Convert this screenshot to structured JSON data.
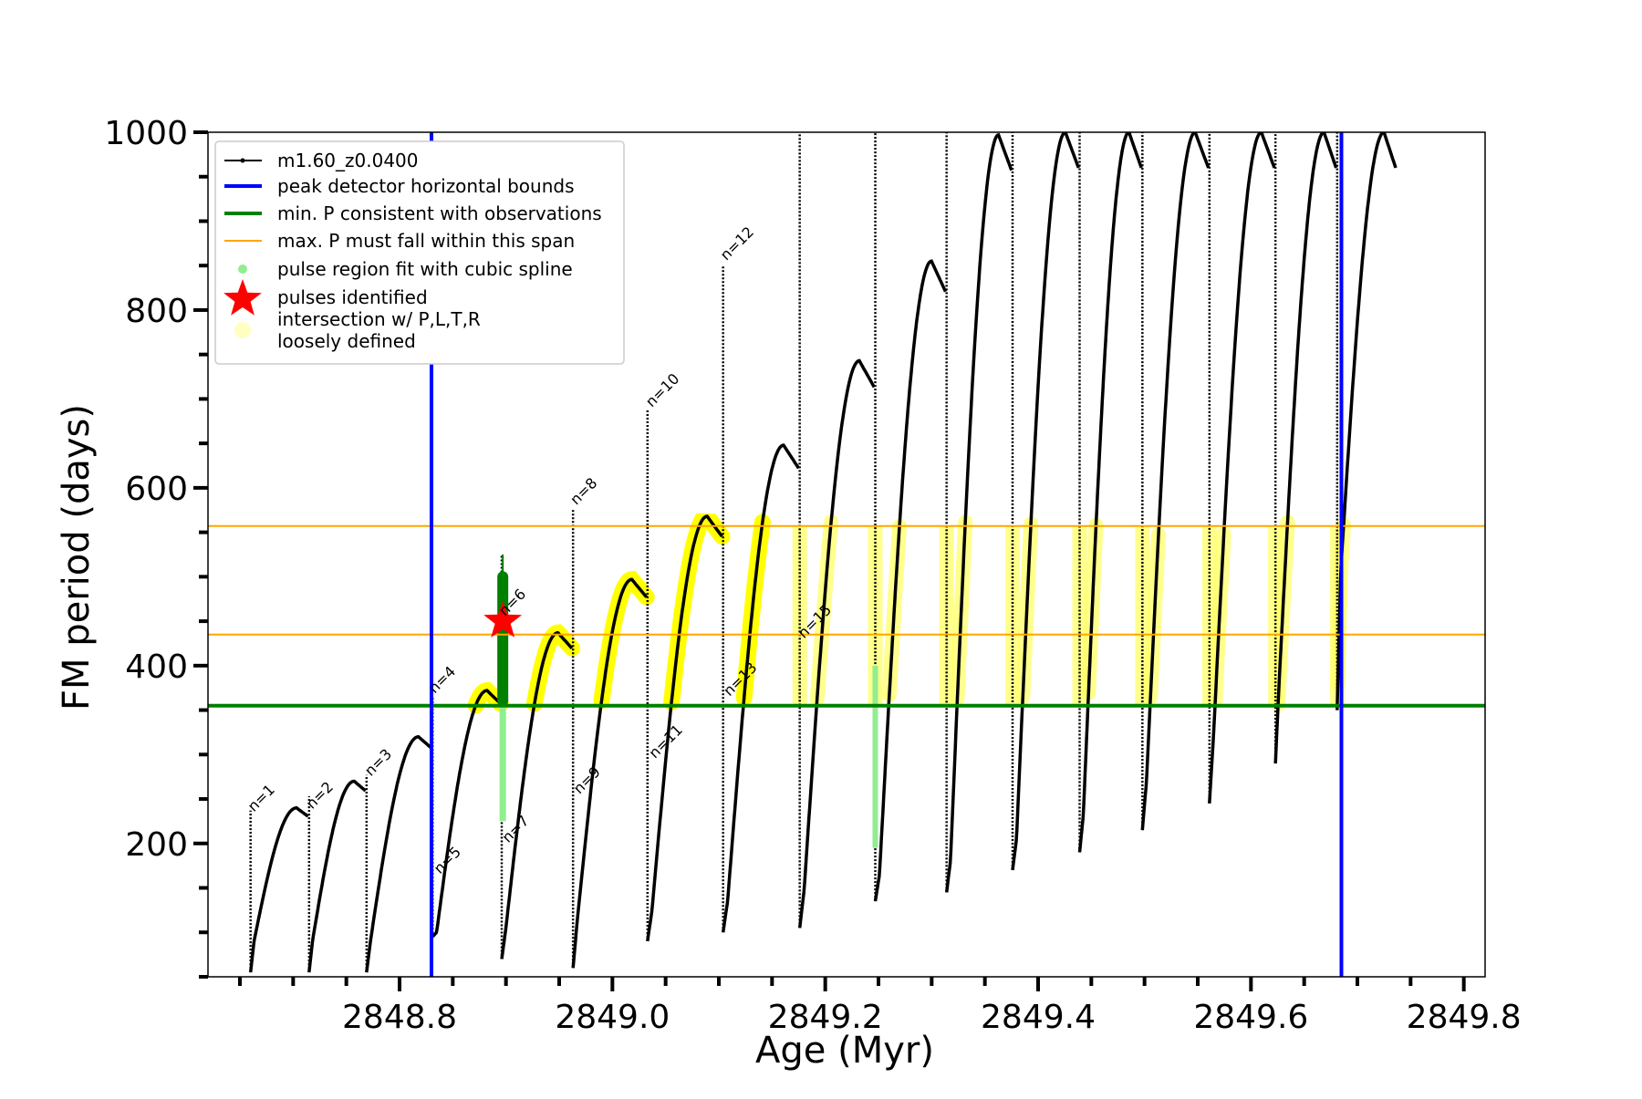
{
  "chart_data": {
    "type": "line",
    "title": "",
    "xlabel": "Age (Myr)",
    "ylabel": "FM period (days)",
    "xlim": [
      2848.62,
      2849.82
    ],
    "ylim": [
      50,
      1000
    ],
    "x_ticks_major": [
      2848.8,
      2849.0,
      2849.2,
      2849.4,
      2849.6,
      2849.8
    ],
    "x_tick_labels": [
      "2848.8",
      "2849.0",
      "2849.2",
      "2849.4",
      "2849.6",
      "2849.8"
    ],
    "y_ticks_major": [
      200,
      400,
      600,
      800,
      1000
    ],
    "y_tick_labels": [
      "200",
      "400",
      "600",
      "800",
      "1000"
    ],
    "grid": false,
    "legend_position": "top-left",
    "legend": [
      {
        "label": "m1.60_z0.0400",
        "kind": "line-dots",
        "color": "#000000"
      },
      {
        "label": "peak detector horizontal bounds",
        "kind": "line",
        "color": "#0000ff"
      },
      {
        "label": "min. P consistent with observations",
        "kind": "line",
        "color": "#008000"
      },
      {
        "label": "max. P must fall within this span",
        "kind": "thin-line",
        "color": "#ffa500"
      },
      {
        "label": "pulse region fit with cubic spline",
        "kind": "dot",
        "color": "#90ee90"
      },
      {
        "label": "pulses identified",
        "kind": "star",
        "color": "#ff0000"
      },
      {
        "label": "intersection w/ P,L,T,R\nloosely defined",
        "kind": "halo",
        "color": "#ffff99"
      }
    ],
    "vlines": [
      2848.83,
      2849.685
    ],
    "min_period": 355,
    "max_period_span": [
      435,
      557
    ],
    "star_point": {
      "x": 2848.897,
      "y": 450
    },
    "pulses": [
      {
        "n": 1,
        "x0": 2848.66,
        "x1": 2848.714,
        "ylow": 55,
        "ymin": 90,
        "ypeak": 240,
        "ytop": 237
      },
      {
        "n": 2,
        "x0": 2848.715,
        "x1": 2848.768,
        "ylow": 55,
        "ymin": 90,
        "ypeak": 270,
        "ytop": 253
      },
      {
        "n": 3,
        "x0": 2848.769,
        "x1": 2848.83,
        "ylow": 55,
        "ymin": 90,
        "ypeak": 320,
        "ytop": 277
      },
      {
        "n": 4,
        "x0": 2848.831,
        "x1": 2848.895,
        "ylow": 95,
        "ymin": 100,
        "ypeak": 372,
        "ytop": 365
      },
      {
        "n": 5,
        "x0": 2848.835,
        "x1": 2848.835,
        "ylow": 100,
        "ymin": 100,
        "ypeak": 200,
        "ytop": 200,
        "label_only": true
      },
      {
        "n": 6,
        "x0": 2848.896,
        "x1": 2848.962,
        "ylow": 70,
        "ymin": 105,
        "ypeak": 437,
        "ytop": 525
      },
      {
        "n": 8,
        "x0": 2848.963,
        "x1": 2849.032,
        "ylow": 60,
        "ymin": 115,
        "ypeak": 497,
        "ytop": 577
      },
      {
        "n": 10,
        "x0": 2849.033,
        "x1": 2849.103,
        "ylow": 90,
        "ymin": 125,
        "ypeak": 568,
        "ytop": 688
      },
      {
        "n": 12,
        "x0": 2849.104,
        "x1": 2849.175,
        "ylow": 100,
        "ymin": 135,
        "ypeak": 648,
        "ytop": 850
      },
      {
        "n": 14,
        "x0": 2849.176,
        "x1": 2849.246,
        "ylow": 105,
        "ymin": 148,
        "ypeak": 743,
        "ytop": 1000
      },
      {
        "n": 16,
        "x0": 2849.247,
        "x1": 2849.313,
        "ylow": 135,
        "ymin": 165,
        "ypeak": 855,
        "ytop": 1000
      },
      {
        "n": 17,
        "x0": 2849.314,
        "x1": 2849.375,
        "ylow": 145,
        "ymin": 180,
        "ypeak": 997,
        "ytop": 1000
      },
      {
        "n": 18,
        "x0": 2849.376,
        "x1": 2849.438,
        "ylow": 170,
        "ymin": 205,
        "ypeak": 1000,
        "ytop": 1000
      },
      {
        "n": 19,
        "x0": 2849.439,
        "x1": 2849.497,
        "ylow": 190,
        "ymin": 232,
        "ypeak": 1000,
        "ytop": 1000
      },
      {
        "n": 20,
        "x0": 2849.498,
        "x1": 2849.56,
        "ylow": 215,
        "ymin": 268,
        "ypeak": 1000,
        "ytop": 1000
      },
      {
        "n": 21,
        "x0": 2849.561,
        "x1": 2849.622,
        "ylow": 245,
        "ymin": 318,
        "ypeak": 1000,
        "ytop": 1000
      },
      {
        "n": 22,
        "x0": 2849.623,
        "x1": 2849.68,
        "ylow": 290,
        "ymin": 380,
        "ypeak": 1000,
        "ytop": 1000
      },
      {
        "n": 23,
        "x0": 2849.681,
        "x1": 2849.736,
        "ylow": 350,
        "ymin": 505,
        "ypeak": 1000,
        "ytop": 1000
      }
    ],
    "pulse_labels": [
      {
        "text": "n=1",
        "x": 2848.663,
        "y": 235
      },
      {
        "text": "n=2",
        "x": 2848.718,
        "y": 238
      },
      {
        "text": "n=3",
        "x": 2848.773,
        "y": 275
      },
      {
        "text": "n=4",
        "x": 2848.833,
        "y": 368
      },
      {
        "text": "n=5",
        "x": 2848.838,
        "y": 165
      },
      {
        "text": "n=6",
        "x": 2848.899,
        "y": 455
      },
      {
        "text": "n=7",
        "x": 2848.902,
        "y": 200
      },
      {
        "text": "n=8",
        "x": 2848.966,
        "y": 580
      },
      {
        "text": "n=9",
        "x": 2848.969,
        "y": 255
      },
      {
        "text": "n=10",
        "x": 2849.037,
        "y": 690
      },
      {
        "text": "n=11",
        "x": 2849.04,
        "y": 295
      },
      {
        "text": "n=12",
        "x": 2849.107,
        "y": 855
      },
      {
        "text": "n=13",
        "x": 2849.11,
        "y": 365
      },
      {
        "text": "n=15",
        "x": 2849.18,
        "y": 430
      }
    ]
  }
}
